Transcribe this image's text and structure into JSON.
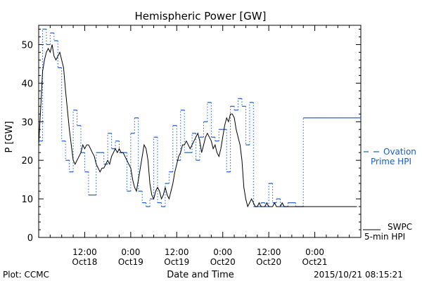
{
  "chart_data": {
    "type": "line",
    "title": "Hemispheric Power [GW]",
    "ylabel": "P [GW]",
    "xlabel": "Date and Time",
    "ylim": [
      0,
      55
    ],
    "xlim_hours": [
      0,
      84
    ],
    "yticks": [
      0,
      10,
      20,
      30,
      40,
      50
    ],
    "xticks": [
      {
        "hour": 12,
        "top": "12:00",
        "bottom": "Oct18"
      },
      {
        "hour": 24,
        "top": "0:00",
        "bottom": "Oct19"
      },
      {
        "hour": 36,
        "top": "12:00",
        "bottom": "Oct19"
      },
      {
        "hour": 48,
        "top": "0:00",
        "bottom": "Oct20"
      },
      {
        "hour": 60,
        "top": "12:00",
        "bottom": "Oct20"
      },
      {
        "hour": 72,
        "top": "0:00",
        "bottom": "Oct21"
      }
    ],
    "x_unit": "hours after 2015-10-18 00:00 UT",
    "series": [
      {
        "name": "Ovation Prime HPI",
        "label_lines": [
          "Ovation",
          "Prime HPI"
        ],
        "color": "#1a5ccc",
        "style": "dotted-step",
        "x": [
          0,
          1,
          2,
          3,
          4,
          5,
          6,
          7,
          8,
          9,
          10,
          11,
          12,
          13,
          14,
          15,
          16,
          17,
          18,
          19,
          20,
          21,
          22,
          23,
          24,
          25,
          26,
          27,
          28,
          29,
          30,
          31,
          32,
          33,
          34,
          35,
          36,
          37,
          38,
          39,
          40,
          41,
          42,
          43,
          44,
          45,
          46,
          47,
          48,
          49,
          50,
          51,
          52,
          53,
          54,
          55,
          56,
          57,
          58,
          59,
          60,
          61,
          62,
          63,
          64,
          65,
          66,
          67,
          68,
          69,
          70,
          71,
          72,
          73,
          74,
          75,
          76,
          77,
          78,
          79,
          80,
          81,
          82,
          83
        ],
        "values": [
          25,
          54,
          50,
          53,
          51,
          44,
          25,
          20,
          17,
          33,
          29,
          22,
          17,
          11,
          11,
          22,
          22,
          19,
          27,
          23,
          25,
          22,
          22,
          12,
          27,
          31,
          12,
          9,
          8,
          10,
          26,
          9,
          8,
          14,
          17,
          29,
          20,
          33,
          22,
          22,
          27,
          20,
          26,
          30,
          35,
          26,
          25,
          28,
          28,
          17,
          34,
          33,
          36,
          34,
          24,
          35,
          8,
          8,
          9,
          8,
          14,
          9,
          10,
          8,
          8,
          9,
          9,
          8,
          8,
          31,
          31,
          31,
          31,
          31,
          31,
          31,
          31,
          31,
          31,
          31,
          31,
          31,
          31,
          31
        ]
      },
      {
        "name": "SWPC 5-min HPI",
        "label_lines": [
          "SWPC",
          "5-min HPI"
        ],
        "color": "#000000",
        "style": "solid",
        "x": [
          0,
          0.5,
          1,
          1.5,
          2,
          2.5,
          3,
          3.5,
          4,
          4.5,
          5,
          5.5,
          6,
          6.5,
          7,
          7.5,
          8,
          8.5,
          9,
          9.5,
          10,
          10.5,
          11,
          11.5,
          12,
          12.5,
          13,
          13.5,
          14,
          14.5,
          15,
          15.5,
          16,
          16.5,
          17,
          17.5,
          18,
          18.5,
          19,
          19.5,
          20,
          20.5,
          21,
          21.5,
          22,
          22.5,
          23,
          23.5,
          24,
          24.5,
          25,
          25.5,
          26,
          26.5,
          27,
          27.5,
          28,
          28.5,
          29,
          29.5,
          30,
          30.5,
          31,
          31.5,
          32,
          32.5,
          33,
          33.5,
          34,
          34.5,
          35,
          35.5,
          36,
          36.5,
          37,
          37.5,
          38,
          38.5,
          39,
          39.5,
          40,
          40.5,
          41,
          41.5,
          42,
          42.5,
          43,
          43.5,
          44,
          44.5,
          45,
          45.5,
          46,
          46.5,
          47,
          47.5,
          48,
          48.5,
          49,
          49.5,
          50,
          50.5,
          51,
          51.5,
          52,
          52.5,
          53,
          53.5,
          54,
          54.5,
          55,
          55.5,
          56,
          56.5,
          57,
          57.5,
          58,
          58.5,
          59,
          59.5,
          60,
          60.5,
          61,
          61.5,
          62,
          62.5,
          63,
          63.5,
          64,
          64.5,
          65,
          65.5,
          66,
          66.5,
          67,
          67.5,
          68,
          68.5,
          69,
          69.5,
          70
        ],
        "values": [
          24,
          33,
          43,
          46,
          48,
          49,
          48,
          50,
          47,
          46,
          47,
          48,
          46,
          44,
          38,
          33,
          28,
          24,
          20,
          19,
          20,
          21,
          22,
          24,
          23,
          24,
          24,
          23,
          22,
          21,
          19,
          18,
          17,
          18,
          18,
          19,
          20,
          19,
          21,
          22,
          23,
          22,
          23,
          22,
          22,
          21,
          20,
          19,
          18,
          15,
          13,
          12,
          15,
          18,
          21,
          24,
          23,
          20,
          14,
          11,
          10,
          12,
          13,
          12,
          10,
          11,
          13,
          11,
          10,
          12,
          14,
          17,
          19,
          21,
          22,
          24,
          24,
          25,
          24,
          23,
          24,
          25,
          26,
          27,
          25,
          22,
          24,
          26,
          27,
          26,
          25,
          23,
          24,
          22,
          21,
          23,
          26,
          29,
          31,
          30,
          32,
          32,
          31,
          28,
          26,
          24,
          20,
          13,
          10,
          8,
          9,
          10,
          9,
          8,
          8,
          9,
          8,
          8,
          8,
          9,
          8,
          8,
          8,
          9,
          8,
          8,
          8,
          9,
          8,
          8,
          8,
          8,
          8,
          8,
          8,
          8,
          8,
          8,
          8,
          8,
          8
        ],
        "x_extra": [
          70.5,
          71,
          71.5,
          72,
          72.5,
          73,
          73.5,
          74,
          74.5,
          75,
          75.5,
          76,
          76.5,
          77,
          77.5,
          78,
          78.5,
          79,
          79.5,
          80,
          80.5,
          81,
          81.5,
          82,
          82.5,
          83
        ],
        "values_extra": [
          8,
          8,
          8,
          8,
          8,
          8,
          8,
          8,
          8,
          8,
          8,
          8,
          8,
          8,
          8,
          8,
          8,
          8,
          8,
          8,
          8,
          8,
          8,
          8,
          8,
          8
        ]
      }
    ],
    "legend": "right"
  },
  "footer": {
    "source": "Plot: CCMC",
    "timestamp": "2015/10/21 08:15:21"
  }
}
